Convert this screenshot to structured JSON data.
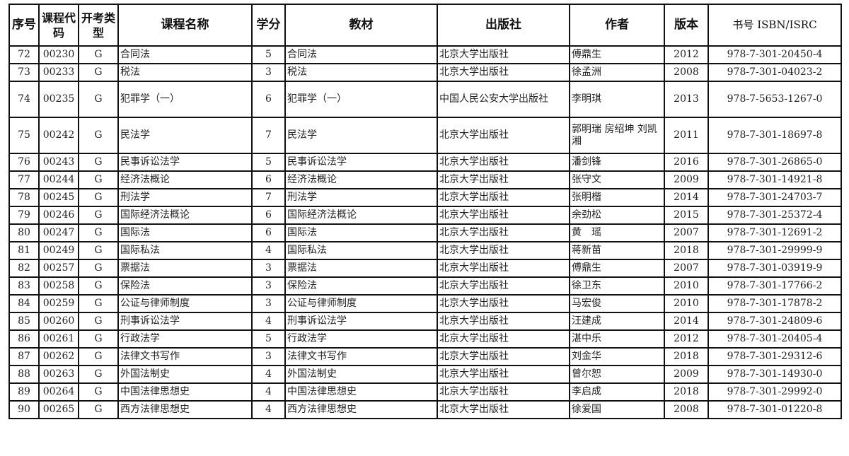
{
  "headers": [
    "序号",
    "课程代码",
    "开考类型",
    "课程名称",
    "学分",
    "教材",
    "出版社",
    "作者",
    "版本",
    "书号 ISBN/ISRC"
  ],
  "rows": [
    {
      "no": "72",
      "code": "00230",
      "type": "G",
      "course": "合同法",
      "credits": "5",
      "textbook": "合同法",
      "publisher": "北京大学出版社",
      "author": "傅鼎生",
      "edition": "2012",
      "isbn": "978-7-301-20450-4"
    },
    {
      "no": "73",
      "code": "00233",
      "type": "G",
      "course": "税法",
      "credits": "3",
      "textbook": "税法",
      "publisher": "北京大学出版社",
      "author": "徐孟洲",
      "edition": "2008",
      "isbn": "978-7-301-04023-2"
    },
    {
      "no": "74",
      "code": "00235",
      "type": "G",
      "course": "犯罪学（一）",
      "credits": "6",
      "textbook": "犯罪学（一）",
      "publisher": "中国人民公安大学出版社",
      "author": "李明琪",
      "edition": "2013",
      "isbn": "978-7-5653-1267-0"
    },
    {
      "no": "75",
      "code": "00242",
      "type": "G",
      "course": "民法学",
      "credits": "7",
      "textbook": "民法学",
      "publisher": "北京大学出版社",
      "author": "郭明瑞 房绍坤 刘凯湘",
      "edition": "2011",
      "isbn": "978-7-301-18697-8"
    },
    {
      "no": "76",
      "code": "00243",
      "type": "G",
      "course": "民事诉讼法学",
      "credits": "5",
      "textbook": "民事诉讼法学",
      "publisher": "北京大学出版社",
      "author": "潘剑锋",
      "edition": "2016",
      "isbn": "978-7-301-26865-0"
    },
    {
      "no": "77",
      "code": "00244",
      "type": "G",
      "course": "经济法概论",
      "credits": "6",
      "textbook": "经济法概论",
      "publisher": "北京大学出版社",
      "author": "张守文",
      "edition": "2009",
      "isbn": "978-7-301-14921-8"
    },
    {
      "no": "78",
      "code": "00245",
      "type": "G",
      "course": "刑法学",
      "credits": "7",
      "textbook": "刑法学",
      "publisher": "北京大学出版社",
      "author": "张明楷",
      "edition": "2014",
      "isbn": "978-7-301-24703-7"
    },
    {
      "no": "79",
      "code": "00246",
      "type": "G",
      "course": "国际经济法概论",
      "credits": "6",
      "textbook": "国际经济法概论",
      "publisher": "北京大学出版社",
      "author": "余劲松",
      "edition": "2015",
      "isbn": "978-7-301-25372-4"
    },
    {
      "no": "80",
      "code": "00247",
      "type": "G",
      "course": "国际法",
      "credits": "6",
      "textbook": "国际法",
      "publisher": "北京大学出版社",
      "author": "黄　瑶",
      "edition": "2007",
      "isbn": "978-7-301-12691-2"
    },
    {
      "no": "81",
      "code": "00249",
      "type": "G",
      "course": "国际私法",
      "credits": "4",
      "textbook": "国际私法",
      "publisher": "北京大学出版社",
      "author": "蒋新苗",
      "edition": "2018",
      "isbn": "978-7-301-29999-9"
    },
    {
      "no": "82",
      "code": "00257",
      "type": "G",
      "course": "票据法",
      "credits": "3",
      "textbook": "票据法",
      "publisher": "北京大学出版社",
      "author": "傅鼎生",
      "edition": "2007",
      "isbn": "978-7-301-03919-9"
    },
    {
      "no": "83",
      "code": "00258",
      "type": "G",
      "course": "保险法",
      "credits": "3",
      "textbook": "保险法",
      "publisher": "北京大学出版社",
      "author": "徐卫东",
      "edition": "2010",
      "isbn": "978-7-301-17766-2"
    },
    {
      "no": "84",
      "code": "00259",
      "type": "G",
      "course": "公证与律师制度",
      "credits": "3",
      "textbook": "公证与律师制度",
      "publisher": "北京大学出版社",
      "author": "马宏俊",
      "edition": "2010",
      "isbn": "978-7-301-17878-2"
    },
    {
      "no": "85",
      "code": "00260",
      "type": "G",
      "course": "刑事诉讼法学",
      "credits": "4",
      "textbook": "刑事诉讼法学",
      "publisher": "北京大学出版社",
      "author": "汪建成",
      "edition": "2014",
      "isbn": "978-7-301-24809-6"
    },
    {
      "no": "86",
      "code": "00261",
      "type": "G",
      "course": "行政法学",
      "credits": "5",
      "textbook": "行政法学",
      "publisher": "北京大学出版社",
      "author": "湛中乐",
      "edition": "2012",
      "isbn": "978-7-301-20405-4"
    },
    {
      "no": "87",
      "code": "00262",
      "type": "G",
      "course": "法律文书写作",
      "credits": "3",
      "textbook": "法律文书写作",
      "publisher": "北京大学出版社",
      "author": "刘金华",
      "edition": "2018",
      "isbn": "978-7-301-29312-6"
    },
    {
      "no": "88",
      "code": "00263",
      "type": "G",
      "course": "外国法制史",
      "credits": "4",
      "textbook": "外国法制史",
      "publisher": "北京大学出版社",
      "author": "曾尔恕",
      "edition": "2009",
      "isbn": "978-7-301-14930-0"
    },
    {
      "no": "89",
      "code": "00264",
      "type": "G",
      "course": "中国法律思想史",
      "credits": "4",
      "textbook": "中国法律思想史",
      "publisher": "北京大学出版社",
      "author": "李启成",
      "edition": "2018",
      "isbn": "978-7-301-29992-0"
    },
    {
      "no": "90",
      "code": "00265",
      "type": "G",
      "course": "西方法律思想史",
      "credits": "4",
      "textbook": "西方法律思想史",
      "publisher": "北京大学出版社",
      "author": "徐爱国",
      "edition": "2008",
      "isbn": "978-7-301-01220-8"
    }
  ]
}
